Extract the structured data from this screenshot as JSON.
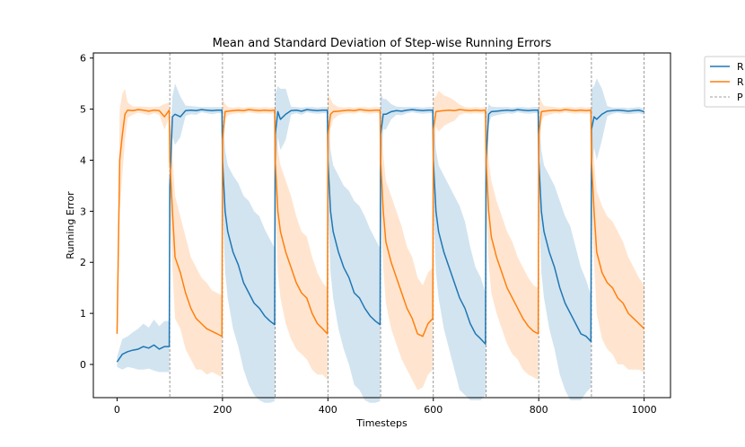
{
  "chart_data": {
    "type": "line",
    "title": "Mean and Standard Deviation of Step-wise Running Errors",
    "xlabel": "Timesteps",
    "ylabel": "Running Error",
    "xlim": [
      -45,
      1050
    ],
    "ylim": [
      -0.65,
      6.1
    ],
    "xticks": [
      0,
      200,
      400,
      600,
      800,
      1000
    ],
    "yticks": [
      0,
      1,
      2,
      3,
      4,
      5,
      6
    ],
    "grid": false,
    "legend": "outside-top-right",
    "legend_entries_visible": [
      "R",
      "R",
      "P"
    ],
    "colors": {
      "series_1": "#1f77b4",
      "series_2": "#ff7f0e",
      "vlines": "#808080"
    },
    "vlines": [
      100,
      200,
      300,
      400,
      500,
      600,
      700,
      800,
      900,
      1000
    ],
    "series": [
      {
        "x": [
          0,
          10,
          20,
          30,
          40,
          50,
          60,
          70,
          80,
          90,
          99,
          100,
          105,
          110,
          120,
          130,
          140,
          150,
          160,
          170,
          180,
          190,
          199,
          200,
          205,
          210,
          220,
          230,
          240,
          250,
          260,
          270,
          280,
          290,
          299,
          300,
          305,
          310,
          320,
          330,
          340,
          350,
          360,
          370,
          380,
          390,
          399,
          400,
          405,
          410,
          420,
          430,
          440,
          450,
          460,
          470,
          480,
          490,
          499,
          500,
          505,
          510,
          520,
          530,
          540,
          550,
          560,
          570,
          580,
          590,
          599,
          600,
          605,
          610,
          620,
          630,
          640,
          650,
          660,
          670,
          680,
          690,
          699,
          700,
          705,
          710,
          720,
          730,
          740,
          750,
          760,
          770,
          780,
          790,
          799,
          800,
          805,
          810,
          820,
          830,
          840,
          850,
          860,
          870,
          880,
          890,
          899,
          900,
          905,
          910,
          920,
          930,
          940,
          950,
          960,
          970,
          980,
          990,
          1000
        ],
        "mean": [
          0.05,
          0.2,
          0.25,
          0.28,
          0.3,
          0.35,
          0.32,
          0.38,
          0.3,
          0.35,
          0.35,
          3.5,
          4.85,
          4.9,
          4.85,
          4.97,
          4.98,
          4.97,
          4.99,
          4.98,
          4.97,
          4.98,
          4.98,
          4.0,
          3.0,
          2.6,
          2.2,
          1.95,
          1.6,
          1.4,
          1.2,
          1.1,
          0.95,
          0.85,
          0.78,
          4.5,
          4.95,
          4.8,
          4.9,
          4.97,
          4.98,
          4.96,
          4.99,
          4.98,
          4.97,
          4.98,
          4.98,
          4.0,
          3.0,
          2.6,
          2.2,
          1.9,
          1.7,
          1.4,
          1.3,
          1.1,
          0.95,
          0.85,
          0.78,
          4.5,
          4.9,
          4.9,
          4.95,
          4.97,
          4.96,
          4.98,
          4.99,
          4.98,
          4.97,
          4.98,
          4.98,
          4.0,
          3.0,
          2.6,
          2.2,
          1.9,
          1.6,
          1.3,
          1.1,
          0.8,
          0.6,
          0.5,
          0.4,
          4.0,
          4.9,
          4.95,
          4.96,
          4.97,
          4.98,
          4.97,
          4.99,
          4.98,
          4.97,
          4.98,
          4.98,
          4.0,
          3.0,
          2.6,
          2.2,
          1.9,
          1.5,
          1.2,
          1.0,
          0.8,
          0.6,
          0.55,
          0.45,
          4.6,
          4.85,
          4.8,
          4.9,
          4.96,
          4.97,
          4.98,
          4.97,
          4.96,
          4.97,
          4.98,
          4.95
        ],
        "std": [
          0.1,
          0.3,
          0.3,
          0.35,
          0.4,
          0.45,
          0.4,
          0.5,
          0.45,
          0.5,
          0.5,
          0.8,
          0.4,
          0.6,
          0.4,
          0.1,
          0.08,
          0.08,
          0.05,
          0.06,
          0.07,
          0.06,
          0.06,
          0.9,
          1.2,
          1.3,
          1.5,
          1.6,
          1.7,
          1.8,
          1.8,
          1.8,
          1.7,
          1.6,
          1.5,
          0.8,
          0.5,
          0.6,
          0.5,
          0.08,
          0.06,
          0.07,
          0.05,
          0.06,
          0.06,
          0.06,
          0.06,
          0.9,
          1.2,
          1.3,
          1.5,
          1.6,
          1.7,
          1.8,
          1.8,
          1.8,
          1.7,
          1.6,
          1.5,
          0.8,
          0.3,
          0.3,
          0.15,
          0.08,
          0.08,
          0.06,
          0.05,
          0.06,
          0.06,
          0.06,
          0.06,
          0.9,
          1.2,
          1.3,
          1.5,
          1.6,
          1.7,
          1.8,
          1.7,
          1.5,
          1.3,
          1.2,
          1.0,
          0.9,
          0.2,
          0.1,
          0.08,
          0.07,
          0.06,
          0.06,
          0.05,
          0.06,
          0.06,
          0.06,
          0.06,
          0.9,
          1.2,
          1.3,
          1.5,
          1.6,
          1.7,
          1.7,
          1.7,
          1.5,
          1.3,
          1.1,
          0.9,
          0.8,
          0.6,
          0.8,
          0.5,
          0.1,
          0.06,
          0.05,
          0.06,
          0.06,
          0.06,
          0.06,
          0.06
        ]
      },
      {
        "x": [
          0,
          5,
          10,
          15,
          20,
          30,
          40,
          50,
          60,
          70,
          80,
          90,
          99,
          100,
          105,
          110,
          120,
          130,
          140,
          150,
          160,
          170,
          180,
          190,
          199,
          200,
          205,
          210,
          220,
          230,
          240,
          250,
          260,
          270,
          280,
          290,
          299,
          300,
          305,
          310,
          320,
          330,
          340,
          350,
          360,
          370,
          380,
          390,
          399,
          400,
          405,
          410,
          420,
          430,
          440,
          450,
          460,
          470,
          480,
          490,
          499,
          500,
          505,
          510,
          520,
          530,
          540,
          550,
          560,
          570,
          580,
          590,
          599,
          600,
          605,
          610,
          620,
          630,
          640,
          650,
          660,
          670,
          680,
          690,
          699,
          700,
          705,
          710,
          720,
          730,
          740,
          750,
          760,
          770,
          780,
          790,
          799,
          800,
          805,
          810,
          820,
          830,
          840,
          850,
          860,
          870,
          880,
          890,
          899,
          900,
          905,
          910,
          920,
          930,
          940,
          950,
          960,
          970,
          980,
          990,
          1000
        ],
        "mean": [
          0.6,
          4.0,
          4.5,
          4.9,
          4.98,
          4.97,
          4.99,
          4.98,
          4.96,
          4.98,
          4.97,
          4.85,
          4.98,
          4.0,
          3.0,
          2.1,
          1.8,
          1.4,
          1.1,
          0.9,
          0.8,
          0.7,
          0.65,
          0.6,
          0.55,
          4.4,
          4.95,
          4.96,
          4.97,
          4.98,
          4.97,
          4.99,
          4.98,
          4.97,
          4.98,
          4.97,
          4.98,
          4.0,
          3.0,
          2.6,
          2.2,
          1.9,
          1.6,
          1.4,
          1.3,
          1.0,
          0.8,
          0.7,
          0.6,
          4.5,
          4.9,
          4.95,
          4.96,
          4.97,
          4.98,
          4.97,
          4.99,
          4.98,
          4.97,
          4.98,
          4.98,
          4.0,
          3.0,
          2.4,
          2.0,
          1.7,
          1.4,
          1.1,
          0.9,
          0.6,
          0.55,
          0.8,
          0.9,
          4.6,
          4.95,
          4.96,
          4.97,
          4.98,
          4.97,
          4.99,
          4.98,
          4.97,
          4.98,
          4.97,
          4.98,
          4.0,
          3.0,
          2.5,
          2.1,
          1.8,
          1.5,
          1.3,
          1.1,
          0.9,
          0.75,
          0.65,
          0.6,
          4.5,
          4.95,
          4.96,
          4.97,
          4.98,
          4.97,
          4.99,
          4.98,
          4.97,
          4.98,
          4.97,
          4.98,
          4.0,
          3.0,
          2.2,
          1.8,
          1.6,
          1.5,
          1.3,
          1.2,
          1.0,
          0.9,
          0.8,
          0.7
        ],
        "std": [
          0.3,
          1.0,
          0.8,
          0.5,
          0.15,
          0.08,
          0.06,
          0.07,
          0.08,
          0.06,
          0.08,
          0.25,
          0.15,
          0.9,
          1.1,
          1.2,
          1.1,
          1.1,
          1.0,
          1.0,
          0.9,
          0.9,
          0.8,
          0.8,
          0.8,
          0.8,
          0.15,
          0.08,
          0.06,
          0.06,
          0.06,
          0.05,
          0.06,
          0.06,
          0.06,
          0.06,
          0.06,
          0.9,
          1.2,
          1.3,
          1.4,
          1.4,
          1.3,
          1.2,
          1.2,
          1.1,
          1.0,
          0.9,
          0.9,
          0.8,
          0.3,
          0.15,
          0.08,
          0.06,
          0.06,
          0.06,
          0.05,
          0.06,
          0.06,
          0.06,
          0.06,
          0.9,
          1.1,
          1.2,
          1.3,
          1.3,
          1.3,
          1.2,
          1.2,
          1.1,
          1.0,
          1.0,
          1.0,
          0.6,
          0.3,
          0.4,
          0.3,
          0.25,
          0.2,
          0.1,
          0.06,
          0.06,
          0.06,
          0.06,
          0.06,
          0.9,
          1.0,
          1.1,
          1.1,
          1.1,
          1.1,
          1.1,
          1.0,
          1.0,
          0.95,
          0.9,
          0.9,
          0.8,
          0.2,
          0.1,
          0.08,
          0.06,
          0.06,
          0.05,
          0.06,
          0.06,
          0.06,
          0.06,
          0.06,
          0.9,
          1.0,
          1.2,
          1.3,
          1.3,
          1.3,
          1.3,
          1.2,
          1.1,
          1.0,
          0.9,
          0.85
        ]
      }
    ]
  }
}
